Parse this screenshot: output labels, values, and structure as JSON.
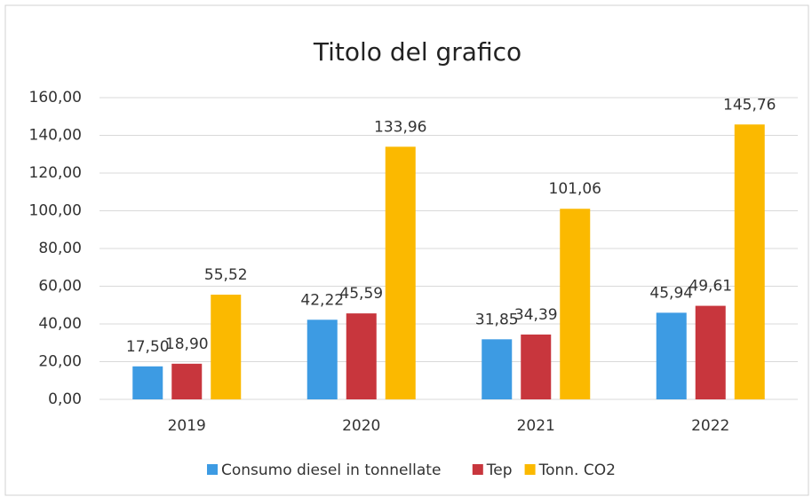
{
  "chart_data": {
    "type": "bar",
    "title": "Titolo del grafico",
    "categories": [
      "2019",
      "2020",
      "2021",
      "2022"
    ],
    "series": [
      {
        "name": "Consumo diesel in tonnellate",
        "color": "#3d9be3",
        "values": [
          17.5,
          42.22,
          31.85,
          45.94
        ],
        "value_labels": [
          "17,50",
          "42,22",
          "31,85",
          "45,94"
        ]
      },
      {
        "name": "Tep",
        "color": "#c8363d",
        "values": [
          18.9,
          45.59,
          34.39,
          49.61
        ],
        "value_labels": [
          "18,90",
          "45,59",
          "34,39",
          "49,61"
        ]
      },
      {
        "name": "Tonn. CO2",
        "color": "#fbb900",
        "values": [
          55.52,
          133.96,
          101.06,
          145.76
        ],
        "value_labels": [
          "55,52",
          "133,96",
          "101,06",
          "145,76"
        ]
      }
    ],
    "ylim": [
      0,
      160
    ],
    "yticks": [
      {
        "value": 0,
        "label": "0,00"
      },
      {
        "value": 20,
        "label": "20,00"
      },
      {
        "value": 40,
        "label": "40,00"
      },
      {
        "value": 60,
        "label": "60,00"
      },
      {
        "value": 80,
        "label": "80,00"
      },
      {
        "value": 100,
        "label": "100,00"
      },
      {
        "value": 120,
        "label": "120,00"
      },
      {
        "value": 140,
        "label": "140,00"
      },
      {
        "value": 160,
        "label": "160,00"
      }
    ],
    "grid": true,
    "legend": "bottom"
  }
}
